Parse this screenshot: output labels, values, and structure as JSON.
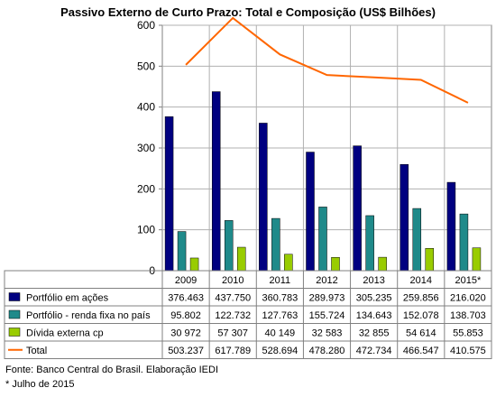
{
  "chart_data": {
    "type": "bar",
    "title": "Passivo Externo de Curto Prazo: Total e Composição (US$ Bilhões)",
    "categories": [
      "2009",
      "2010",
      "2011",
      "2012",
      "2013",
      "2014",
      "2015*"
    ],
    "ylim": [
      0,
      600
    ],
    "yticks": [
      "0",
      "100",
      "200",
      "300",
      "400",
      "500",
      "600"
    ],
    "grid": true,
    "legend": "table-left",
    "series": [
      {
        "name": "Portfólio em ações",
        "type": "bar",
        "color": "#000080",
        "values": [
          376.463,
          437.75,
          360.783,
          289.973,
          305.235,
          259.856,
          216.02
        ],
        "labels": [
          "376.463",
          "437.750",
          "360.783",
          "289.973",
          "305.235",
          "259.856",
          "216.020"
        ]
      },
      {
        "name": "Portfólio - renda fixa no país",
        "type": "bar",
        "color": "#1f8a8a",
        "values": [
          95.802,
          122.732,
          127.763,
          155.724,
          134.643,
          152.078,
          138.703
        ],
        "labels": [
          "95.802",
          "122.732",
          "127.763",
          "155.724",
          "134.643",
          "152.078",
          "138.703"
        ]
      },
      {
        "name": "Dívida externa cp",
        "type": "bar",
        "color": "#99cc00",
        "values": [
          30.972,
          57.307,
          40.149,
          32.583,
          32.855,
          54.614,
          55.853
        ],
        "labels": [
          "30 972",
          "57 307",
          "40 149",
          "32 583",
          "32 855",
          "54 614",
          "55.853"
        ]
      },
      {
        "name": "Total",
        "type": "line",
        "color": "#ff6600",
        "values": [
          503.237,
          617.789,
          528.694,
          478.28,
          472.734,
          466.547,
          410.575
        ],
        "labels": [
          "503.237",
          "617.789",
          "528.694",
          "478.280",
          "472.734",
          "466.547",
          "410.575"
        ]
      }
    ]
  },
  "notes": {
    "source": "Fonte: Banco Central do Brasil. Elaboração IEDI",
    "footnote": "* Julho de 2015"
  }
}
